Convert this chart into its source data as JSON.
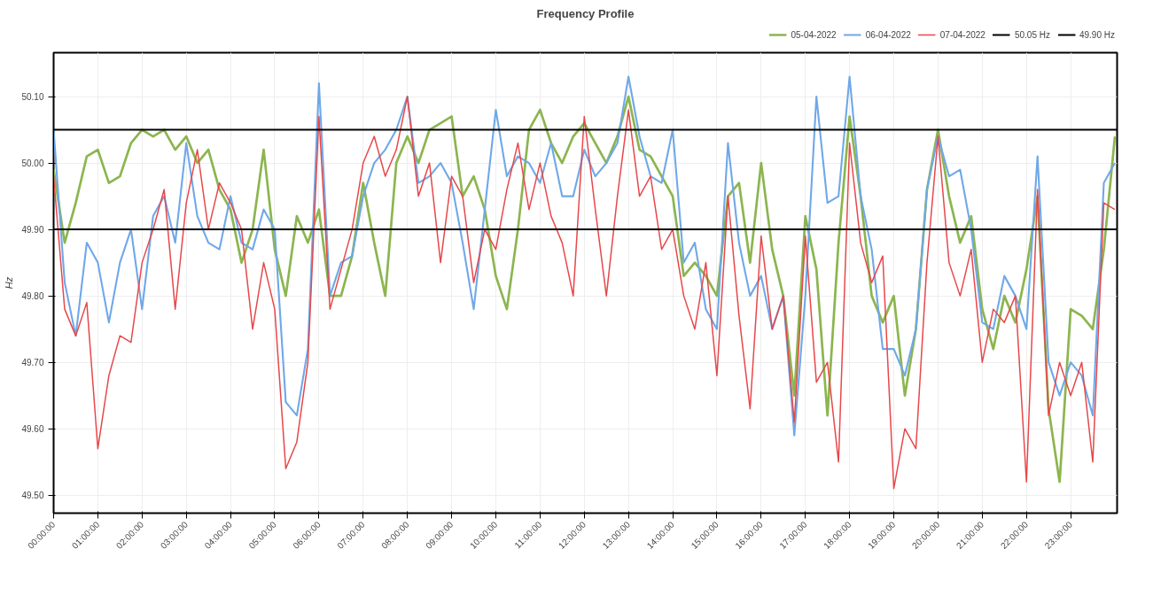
{
  "chart_data": {
    "type": "line",
    "title": "Frequency Profile",
    "ylabel": "Hz",
    "x": [
      0,
      0.25,
      0.5,
      0.75,
      1,
      1.25,
      1.5,
      1.75,
      2,
      2.25,
      2.5,
      2.75,
      3,
      3.25,
      3.5,
      3.75,
      4,
      4.25,
      4.5,
      4.75,
      5,
      5.25,
      5.5,
      5.75,
      6,
      6.25,
      6.5,
      6.75,
      7,
      7.25,
      7.5,
      7.75,
      8,
      8.25,
      8.5,
      8.75,
      9,
      9.25,
      9.5,
      9.75,
      10,
      10.25,
      10.5,
      10.75,
      11,
      11.25,
      11.5,
      11.75,
      12,
      12.25,
      12.5,
      12.75,
      13,
      13.25,
      13.5,
      13.75,
      14,
      14.25,
      14.5,
      14.75,
      15,
      15.25,
      15.5,
      15.75,
      16,
      16.25,
      16.5,
      16.75,
      17,
      17.25,
      17.5,
      17.75,
      18,
      18.25,
      18.5,
      18.75,
      19,
      19.25,
      19.5,
      19.75,
      20,
      20.25,
      20.5,
      20.75,
      21,
      21.25,
      21.5,
      21.75,
      22,
      22.25,
      22.5,
      22.75,
      23,
      23.25,
      23.5,
      23.75,
      24
    ],
    "series": [
      {
        "name": "05-04-2022",
        "color": "#8cb54f",
        "values": [
          49.99,
          49.88,
          49.94,
          50.01,
          50.02,
          49.97,
          49.98,
          50.03,
          50.05,
          50.04,
          50.05,
          50.02,
          50.04,
          50.0,
          50.02,
          49.96,
          49.93,
          49.85,
          49.9,
          50.02,
          49.87,
          49.8,
          49.92,
          49.88,
          49.93,
          49.8,
          49.8,
          49.86,
          49.97,
          49.88,
          49.8,
          50.0,
          50.04,
          50.0,
          50.05,
          50.06,
          50.07,
          49.95,
          49.98,
          49.93,
          49.83,
          49.78,
          49.9,
          50.05,
          50.08,
          50.03,
          50.0,
          50.04,
          50.06,
          50.03,
          50.0,
          50.04,
          50.1,
          50.02,
          50.01,
          49.98,
          49.95,
          49.83,
          49.85,
          49.83,
          49.8,
          49.95,
          49.97,
          49.85,
          50.0,
          49.87,
          49.8,
          49.65,
          49.92,
          49.84,
          49.62,
          49.88,
          50.07,
          49.95,
          49.8,
          49.76,
          49.8,
          49.65,
          49.75,
          49.96,
          50.05,
          49.95,
          49.88,
          49.92,
          49.78,
          49.72,
          49.8,
          49.76,
          49.84,
          49.95,
          49.63,
          49.52,
          49.78,
          49.77,
          49.75,
          49.87,
          50.04
        ]
      },
      {
        "name": "06-04-2022",
        "color": "#6fa8e8",
        "values": [
          50.05,
          49.82,
          49.74,
          49.88,
          49.85,
          49.76,
          49.85,
          49.9,
          49.78,
          49.92,
          49.95,
          49.88,
          50.03,
          49.92,
          49.88,
          49.87,
          49.95,
          49.88,
          49.87,
          49.93,
          49.9,
          49.64,
          49.62,
          49.72,
          50.12,
          49.8,
          49.85,
          49.86,
          49.95,
          50.0,
          50.02,
          50.05,
          50.1,
          49.97,
          49.98,
          50.0,
          49.97,
          49.88,
          49.78,
          49.93,
          50.08,
          49.98,
          50.01,
          50.0,
          49.97,
          50.03,
          49.95,
          49.95,
          50.02,
          49.98,
          50.0,
          50.03,
          50.13,
          50.04,
          49.98,
          49.97,
          50.05,
          49.85,
          49.88,
          49.78,
          49.75,
          50.03,
          49.88,
          49.8,
          49.83,
          49.75,
          49.8,
          49.59,
          49.8,
          50.1,
          49.94,
          49.95,
          50.13,
          49.95,
          49.87,
          49.72,
          49.72,
          49.68,
          49.75,
          49.96,
          50.04,
          49.98,
          49.99,
          49.9,
          49.76,
          49.75,
          49.83,
          49.8,
          49.75,
          50.01,
          49.7,
          49.65,
          49.7,
          49.68,
          49.62,
          49.97,
          50.0
        ]
      },
      {
        "name": "07-04-2022",
        "color": "#e8474a",
        "values": [
          49.98,
          49.78,
          49.74,
          49.79,
          49.57,
          49.68,
          49.74,
          49.73,
          49.85,
          49.9,
          49.96,
          49.78,
          49.94,
          50.02,
          49.9,
          49.97,
          49.94,
          49.9,
          49.75,
          49.85,
          49.78,
          49.54,
          49.58,
          49.7,
          50.07,
          49.78,
          49.84,
          49.9,
          50.0,
          50.04,
          49.98,
          50.02,
          50.1,
          49.95,
          50.0,
          49.85,
          49.98,
          49.95,
          49.82,
          49.9,
          49.87,
          49.96,
          50.03,
          49.93,
          50.0,
          49.92,
          49.88,
          49.8,
          50.07,
          49.93,
          49.8,
          49.95,
          50.08,
          49.95,
          49.98,
          49.87,
          49.9,
          49.8,
          49.75,
          49.85,
          49.68,
          49.95,
          49.77,
          49.63,
          49.89,
          49.75,
          49.8,
          49.61,
          49.89,
          49.67,
          49.7,
          49.55,
          50.03,
          49.88,
          49.82,
          49.86,
          49.51,
          49.6,
          49.57,
          49.85,
          50.04,
          49.85,
          49.8,
          49.87,
          49.7,
          49.78,
          49.76,
          49.8,
          49.52,
          49.96,
          49.62,
          49.7,
          49.65,
          49.7,
          49.55,
          49.94,
          49.93
        ]
      }
    ],
    "ref_lines": [
      {
        "axis": "y",
        "value": 50.05,
        "label": "50.05 Hz",
        "color": "#000000"
      },
      {
        "axis": "y",
        "value": 49.9,
        "label": "49.90 Hz",
        "color": "#000000"
      }
    ],
    "xlim": [
      0,
      24.05
    ],
    "ylim": [
      49.473,
      50.166
    ],
    "xticks": [
      {
        "value": 0,
        "label": "00:00:00"
      },
      {
        "value": 1,
        "label": "01:00:00"
      },
      {
        "value": 2,
        "label": "02:00:00"
      },
      {
        "value": 3,
        "label": "03:00:00"
      },
      {
        "value": 4,
        "label": "04:00:00"
      },
      {
        "value": 5,
        "label": "05:00:00"
      },
      {
        "value": 6,
        "label": "06:00:00"
      },
      {
        "value": 7,
        "label": "07:00:00"
      },
      {
        "value": 8,
        "label": "08:00:00"
      },
      {
        "value": 9,
        "label": "09:00:00"
      },
      {
        "value": 10,
        "label": "10:00:00"
      },
      {
        "value": 11,
        "label": "11:00:00"
      },
      {
        "value": 12,
        "label": "12:00:00"
      },
      {
        "value": 13,
        "label": "13:00:00"
      },
      {
        "value": 14,
        "label": "14:00:00"
      },
      {
        "value": 15,
        "label": "15:00:00"
      },
      {
        "value": 16,
        "label": "16:00:00"
      },
      {
        "value": 17,
        "label": "17:00:00"
      },
      {
        "value": 18,
        "label": "18:00:00"
      },
      {
        "value": 19,
        "label": "19:00:00"
      },
      {
        "value": 20,
        "label": "20:00:00"
      },
      {
        "value": 21,
        "label": "21:00:00"
      },
      {
        "value": 22,
        "label": "22:00:00"
      },
      {
        "value": 23,
        "label": "23:00:00"
      }
    ],
    "yticks": [
      {
        "value": 49.5,
        "label": "49.50"
      },
      {
        "value": 49.6,
        "label": "49.60"
      },
      {
        "value": 49.7,
        "label": "49.70"
      },
      {
        "value": 49.8,
        "label": "49.80"
      },
      {
        "value": 49.9,
        "label": "49.90"
      },
      {
        "value": 50.0,
        "label": "50.00"
      },
      {
        "value": 50.1,
        "label": "50.10"
      }
    ],
    "grid": true,
    "legend": "top right",
    "marker": "none",
    "line_style": "solid"
  }
}
